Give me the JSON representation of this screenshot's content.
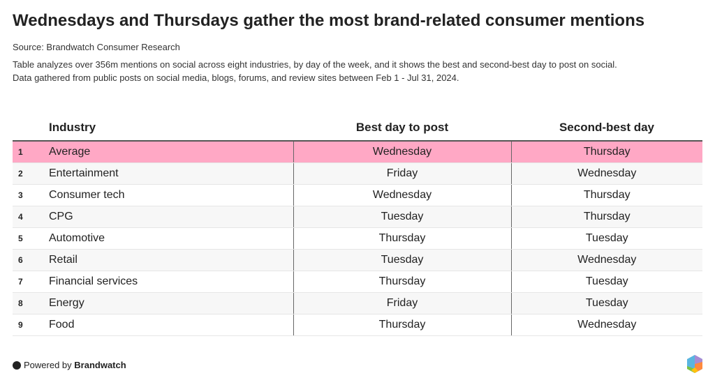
{
  "title": "Wednesdays and Thursdays gather the most brand-related consumer mentions",
  "source": "Source: Brandwatch Consumer Research",
  "description_lines": [
    "Table analyzes over 356m mentions on social across eight industries, by day of the week, and it shows the best and second-best day to post on social.",
    "Data gathered from public posts on social media, blogs, forums, and review sites between Feb 1 - Jul 31, 2024."
  ],
  "chart_data": {
    "type": "table",
    "columns": [
      "Industry",
      "Best day to post",
      "Second-best day"
    ],
    "highlight_color": "#ffa8c5",
    "rows": [
      {
        "n": "1",
        "industry": "Average",
        "best": "Wednesday",
        "second": "Thursday"
      },
      {
        "n": "2",
        "industry": "Entertainment",
        "best": "Friday",
        "second": "Wednesday"
      },
      {
        "n": "3",
        "industry": "Consumer tech",
        "best": "Wednesday",
        "second": "Thursday"
      },
      {
        "n": "4",
        "industry": "CPG",
        "best": "Tuesday",
        "second": "Thursday"
      },
      {
        "n": "5",
        "industry": "Automotive",
        "best": "Thursday",
        "second": "Tuesday"
      },
      {
        "n": "6",
        "industry": "Retail",
        "best": "Tuesday",
        "second": "Wednesday"
      },
      {
        "n": "7",
        "industry": "Financial services",
        "best": "Thursday",
        "second": "Tuesday"
      },
      {
        "n": "8",
        "industry": "Energy",
        "best": "Friday",
        "second": "Tuesday"
      },
      {
        "n": "9",
        "industry": "Food",
        "best": "Thursday",
        "second": "Wednesday"
      }
    ]
  },
  "footer": {
    "powered_by": "Powered by",
    "brand": "Brandwatch"
  }
}
